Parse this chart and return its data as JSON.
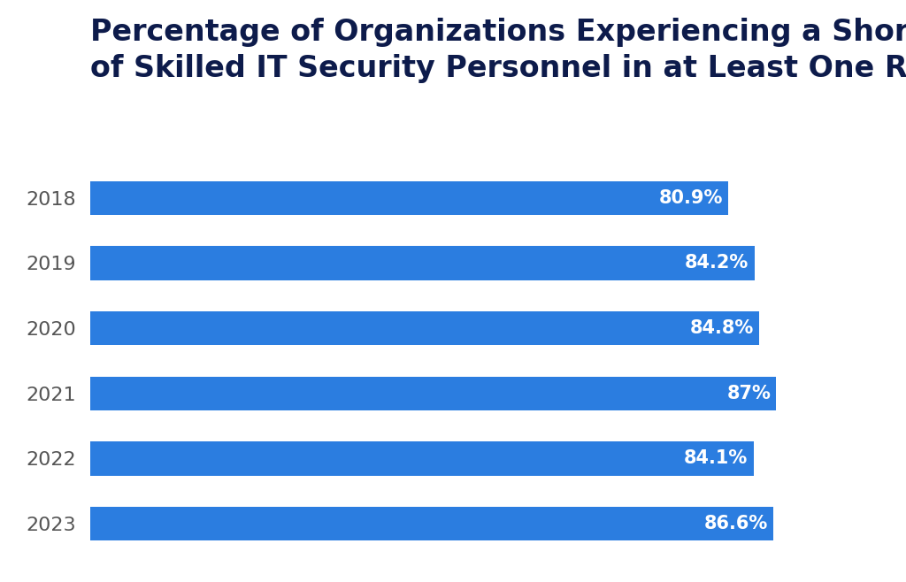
{
  "title_line1": "Percentage of Organizations Experiencing a Shortfall",
  "title_line2": "of Skilled IT Security Personnel in at Least One Role",
  "categories": [
    "2018",
    "2019",
    "2020",
    "2021",
    "2022",
    "2023"
  ],
  "values": [
    80.9,
    84.2,
    84.8,
    87.0,
    84.1,
    86.6
  ],
  "labels": [
    "80.9%",
    "84.2%",
    "84.8%",
    "87%",
    "84.1%",
    "86.6%"
  ],
  "bar_color": "#2b7de0",
  "background_color": "#ffffff",
  "title_color": "#0d1b4b",
  "label_color": "#ffffff",
  "ytick_color": "#555555",
  "xlim": [
    0,
    100
  ],
  "title_fontsize": 24,
  "label_fontsize": 15,
  "tick_fontsize": 16,
  "bar_height": 0.52
}
